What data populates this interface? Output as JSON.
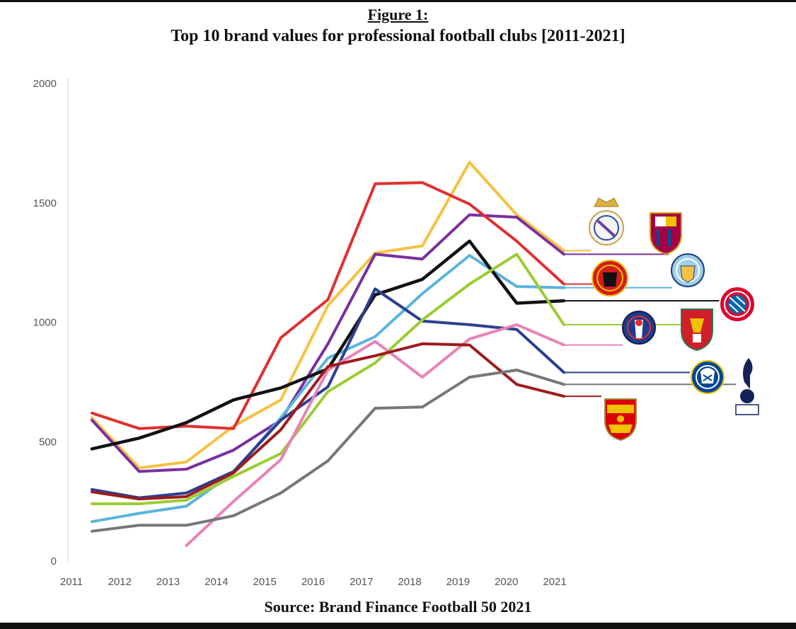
{
  "figure": {
    "label": "Figure 1:",
    "title": "Top 10 brand values for professional football clubs [2011-2021]",
    "source": "Source: Brand Finance Football 50 2021"
  },
  "chart_data": {
    "type": "line",
    "title": "Top 10 brand values for professional football clubs [2011-2021]",
    "xlabel": "",
    "ylabel": "",
    "x": [
      "2011",
      "2012",
      "2013",
      "2014",
      "2015",
      "2016",
      "2017",
      "2018",
      "2019",
      "2020",
      "2021"
    ],
    "y_ticks": [
      "0",
      "500",
      "1000",
      "1500",
      "2000"
    ],
    "ylim": [
      0,
      2000
    ],
    "grid": false,
    "series": [
      {
        "name": "Real Madrid",
        "color": "#f6c142",
        "logo": "real-madrid-crest",
        "values": [
          600,
          390,
          415,
          565,
          675,
          1070,
          1290,
          1320,
          1670,
          1450,
          1300
        ]
      },
      {
        "name": "Barcelona",
        "color": "#7b2f9e",
        "logo": "fc-barcelona-crest",
        "values": [
          590,
          375,
          385,
          465,
          590,
          910,
          1285,
          1265,
          1450,
          1440,
          1285
        ]
      },
      {
        "name": "Manchester United",
        "color": "#e03030",
        "logo": "manchester-united-crest",
        "values": [
          620,
          555,
          565,
          555,
          935,
          1095,
          1580,
          1585,
          1495,
          1340,
          1160
        ]
      },
      {
        "name": "Manchester City",
        "color": "#5ab4db",
        "logo": "manchester-city-crest",
        "values": [
          165,
          200,
          230,
          370,
          600,
          850,
          940,
          1120,
          1280,
          1150,
          1145
        ]
      },
      {
        "name": "Bayern Munich",
        "color": "#111111",
        "logo": "bayern-munich-crest",
        "values": [
          470,
          515,
          580,
          675,
          725,
          805,
          1115,
          1180,
          1340,
          1080,
          1090
        ]
      },
      {
        "name": "Paris Saint-Germain",
        "color": "#2b3f8f",
        "logo": "psg-crest",
        "values": [
          300,
          265,
          285,
          375,
          590,
          730,
          1140,
          1005,
          990,
          970,
          790
        ]
      },
      {
        "name": "Liverpool",
        "color": "#9acd32",
        "logo": "liverpool-crest",
        "values": [
          240,
          240,
          255,
          355,
          450,
          710,
          830,
          1010,
          1160,
          1285,
          990
        ]
      },
      {
        "name": "Chelsea",
        "color": "#ea82b8",
        "logo": "chelsea-crest",
        "values": [
          null,
          null,
          65,
          250,
          425,
          800,
          920,
          770,
          930,
          990,
          905
        ]
      },
      {
        "name": "Arsenal",
        "color": "#9e1b1b",
        "logo": "arsenal-crest",
        "values": [
          290,
          260,
          270,
          370,
          550,
          815,
          860,
          910,
          905,
          740,
          690
        ]
      },
      {
        "name": "Tottenham Hotspur",
        "color": "#777777",
        "logo": "tottenham-crest",
        "values": [
          125,
          150,
          150,
          190,
          285,
          420,
          640,
          645,
          770,
          800,
          740
        ]
      }
    ]
  }
}
